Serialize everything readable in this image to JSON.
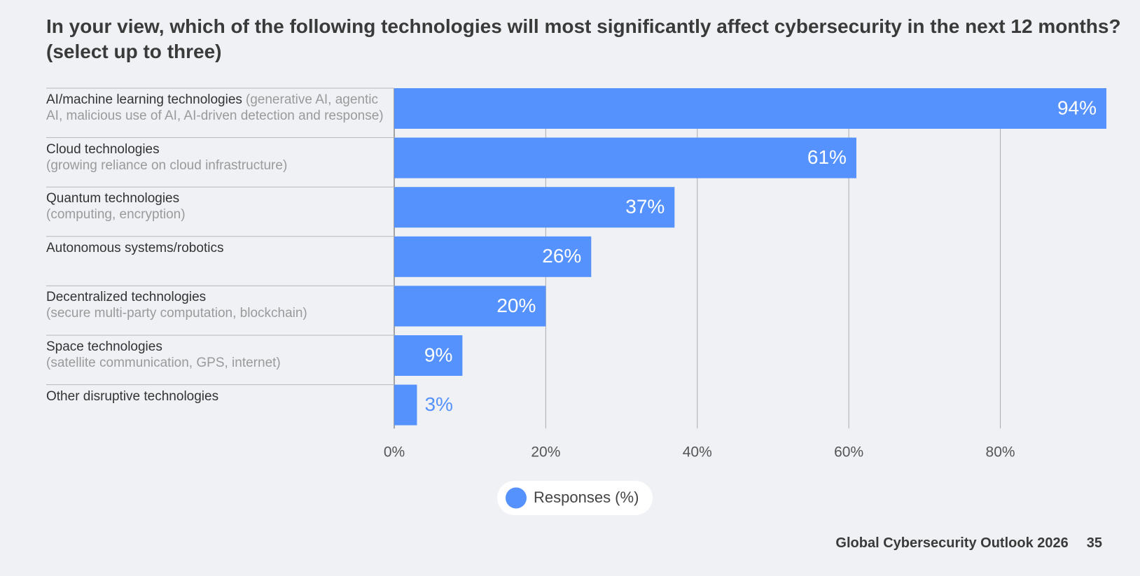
{
  "chart_data": {
    "type": "hbar",
    "title": "In your view, which of the following technologies will most significantly affect cybersecurity in the next 12 months? (select up to three)",
    "categories": [
      "AI/machine learning technologies",
      "Cloud technologies",
      "Quantum technologies",
      "Autonomous systems/robotics",
      "Decentralized technologies",
      "Space technologies",
      "Other disruptive technologies"
    ],
    "category_notes": [
      "(generative AI, agentic AI, malicious use of AI, AI-driven detection and response)",
      "(growing reliance on cloud infrastructure)",
      "(computing, encryption)",
      null,
      "(secure multi-party computation, blockchain)",
      "(satellite communication, GPS, internet)",
      null
    ],
    "series": [
      {
        "name": "Responses (%)",
        "color": "#5592fd",
        "values": [
          94,
          61,
          37,
          26,
          20,
          9,
          3
        ],
        "value_labels": [
          "94%",
          "61%",
          "37%",
          "26%",
          "20%",
          "9%",
          "3%"
        ]
      }
    ],
    "xlim": [
      0,
      94
    ],
    "xticks": [
      {
        "value": 0,
        "label": "0%"
      },
      {
        "value": 20,
        "label": "20%"
      },
      {
        "value": 40,
        "label": "40%"
      },
      {
        "value": 60,
        "label": "60%"
      },
      {
        "value": 80,
        "label": "80%"
      }
    ],
    "grid": true
  },
  "footer": {
    "source": "Global Cybersecurity Outlook 2026",
    "page": "35"
  }
}
